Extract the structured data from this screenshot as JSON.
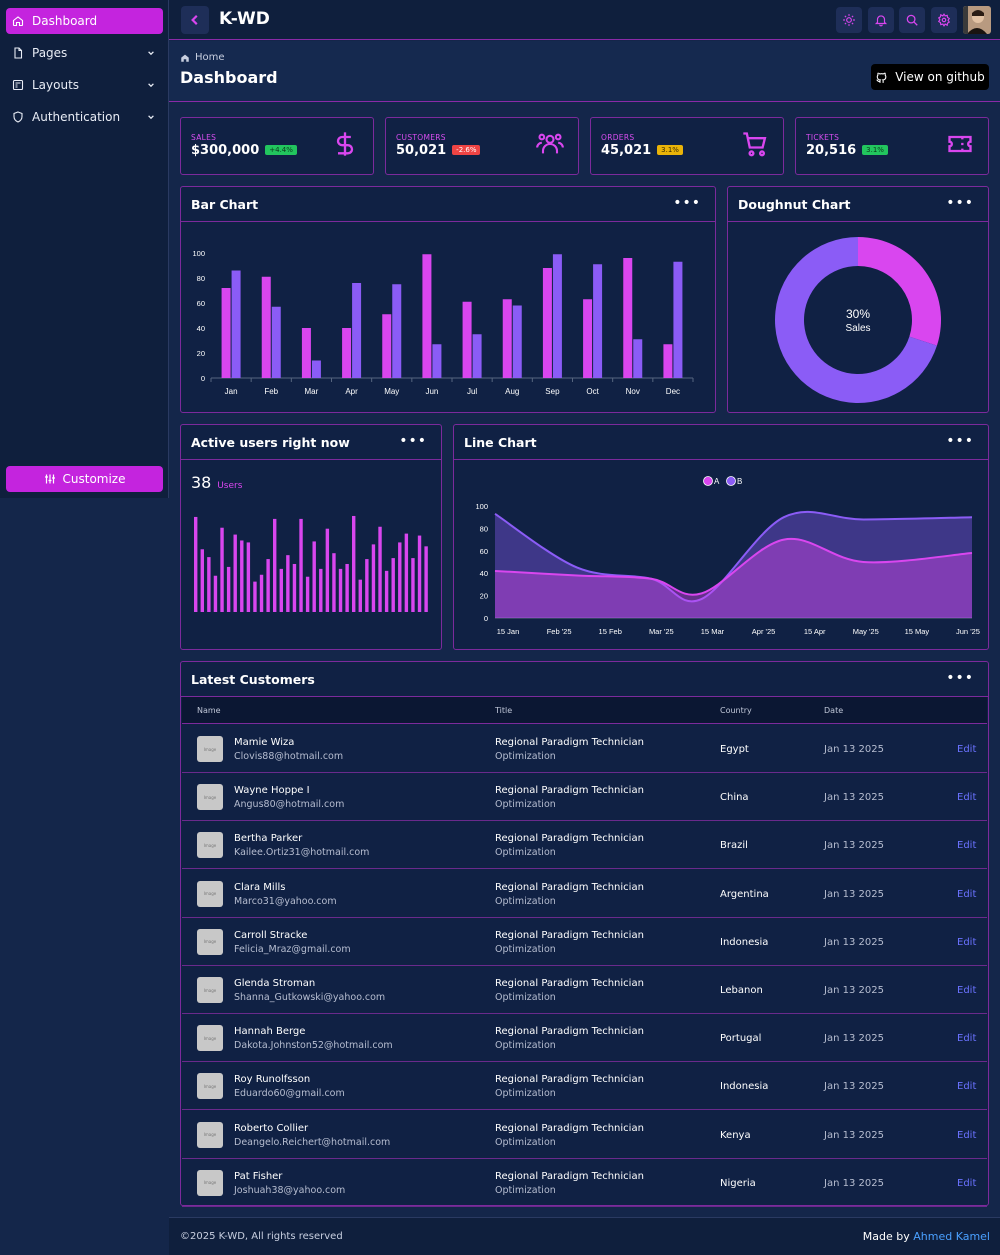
{
  "sidebar": {
    "items": [
      {
        "label": "Dashboard",
        "icon": "home-icon",
        "active": true,
        "has_children": false
      },
      {
        "label": "Pages",
        "icon": "file-icon",
        "active": false,
        "has_children": true
      },
      {
        "label": "Layouts",
        "icon": "layout-icon",
        "active": false,
        "has_children": true
      },
      {
        "label": "Authentication",
        "icon": "shield-icon",
        "active": false,
        "has_children": true
      }
    ],
    "customize_label": "Customize"
  },
  "header": {
    "brand": "K-WD",
    "icons": [
      "sun-icon",
      "bell-icon",
      "search-icon",
      "gear-icon"
    ]
  },
  "page": {
    "breadcrumb": "Home",
    "title": "Dashboard",
    "github_label": "View on github"
  },
  "stats": [
    {
      "label": "SALES",
      "value": "$300,000",
      "badge": "+4.4%",
      "badge_color": "#22c55e",
      "icon": "dollar-icon"
    },
    {
      "label": "CUSTOMERS",
      "value": "50,021",
      "badge": "-2.6%",
      "badge_color": "#ef4444",
      "icon": "users-icon"
    },
    {
      "label": "ORDERS",
      "value": "45,021",
      "badge": "3.1%",
      "badge_color": "#eab308",
      "icon": "cart-icon"
    },
    {
      "label": "TICKETS",
      "value": "20,516",
      "badge": "3.1%",
      "badge_color": "#22c55e",
      "icon": "ticket-icon"
    }
  ],
  "bar_chart": {
    "title": "Bar Chart"
  },
  "doughnut_chart": {
    "title": "Doughnut Chart"
  },
  "active_users": {
    "title": "Active users right now",
    "count": "38",
    "unit": "Users"
  },
  "line_chart": {
    "title": "Line Chart"
  },
  "customers": {
    "title": "Latest Customers",
    "columns": [
      "Name",
      "Title",
      "Country",
      "Date"
    ],
    "thumb_text": "Image",
    "edit_label": "Edit",
    "rows": [
      {
        "name": "Mamie Wiza",
        "email": "Clovis88@hotmail.com",
        "title": "Regional Paradigm Technician",
        "dept": "Optimization",
        "country": "Egypt",
        "date": "Jan 13 2025"
      },
      {
        "name": "Wayne Hoppe I",
        "email": "Angus80@hotmail.com",
        "title": "Regional Paradigm Technician",
        "dept": "Optimization",
        "country": "China",
        "date": "Jan 13 2025"
      },
      {
        "name": "Bertha Parker",
        "email": "Kailee.Ortiz31@hotmail.com",
        "title": "Regional Paradigm Technician",
        "dept": "Optimization",
        "country": "Brazil",
        "date": "Jan 13 2025"
      },
      {
        "name": "Clara Mills",
        "email": "Marco31@yahoo.com",
        "title": "Regional Paradigm Technician",
        "dept": "Optimization",
        "country": "Argentina",
        "date": "Jan 13 2025"
      },
      {
        "name": "Carroll Stracke",
        "email": "Felicia_Mraz@gmail.com",
        "title": "Regional Paradigm Technician",
        "dept": "Optimization",
        "country": "Indonesia",
        "date": "Jan 13 2025"
      },
      {
        "name": "Glenda Stroman",
        "email": "Shanna_Gutkowski@yahoo.com",
        "title": "Regional Paradigm Technician",
        "dept": "Optimization",
        "country": "Lebanon",
        "date": "Jan 13 2025"
      },
      {
        "name": "Hannah Berge",
        "email": "Dakota.Johnston52@hotmail.com",
        "title": "Regional Paradigm Technician",
        "dept": "Optimization",
        "country": "Portugal",
        "date": "Jan 13 2025"
      },
      {
        "name": "Roy Runolfsson",
        "email": "Eduardo60@gmail.com",
        "title": "Regional Paradigm Technician",
        "dept": "Optimization",
        "country": "Indonesia",
        "date": "Jan 13 2025"
      },
      {
        "name": "Roberto Collier",
        "email": "Deangelo.Reichert@hotmail.com",
        "title": "Regional Paradigm Technician",
        "dept": "Optimization",
        "country": "Kenya",
        "date": "Jan 13 2025"
      },
      {
        "name": "Pat Fisher",
        "email": "Joshuah38@yahoo.com",
        "title": "Regional Paradigm Technician",
        "dept": "Optimization",
        "country": "Nigeria",
        "date": "Jan 13 2025"
      }
    ]
  },
  "footer": {
    "copyright": "©2025 K-WD, All rights reserved",
    "made_by": "Made by",
    "author": "Ahmed Kamel"
  },
  "colors": {
    "accent": "#c424de",
    "series_a": "#d946ef",
    "series_b": "#8b5cf6"
  },
  "chart_data": [
    {
      "type": "bar",
      "categories": [
        "Jan",
        "Feb",
        "Mar",
        "Apr",
        "May",
        "Jun",
        "Jul",
        "Aug",
        "Sep",
        "Oct",
        "Nov",
        "Dec"
      ],
      "series": [
        {
          "values": [
            72,
            81,
            40,
            40,
            51,
            99,
            61,
            63,
            88,
            63,
            96,
            27
          ]
        },
        {
          "values": [
            86,
            57,
            14,
            76,
            75,
            27,
            35,
            58,
            99,
            91,
            31,
            93
          ]
        }
      ],
      "yticks": [
        "0",
        "20",
        "40",
        "60",
        "80",
        "100"
      ],
      "ylim": [
        0,
        100
      ]
    },
    {
      "type": "pie",
      "values": [
        30,
        70
      ],
      "center_value": "30%",
      "center_label": "Sales"
    },
    {
      "type": "bar",
      "values": [
        97,
        64,
        56,
        37,
        86,
        46,
        79,
        73,
        71,
        31,
        38,
        54,
        95,
        44,
        58,
        49,
        95,
        36,
        72,
        44,
        85,
        60,
        44,
        49,
        98,
        33,
        54,
        69,
        87,
        42,
        55,
        71,
        80,
        55,
        78,
        67
      ],
      "ylim": [
        0,
        100
      ]
    },
    {
      "type": "area",
      "legend": [
        "A",
        "B"
      ],
      "legend_position": "top",
      "xticks": [
        "15 Jan",
        "Feb '25",
        "15 Feb",
        "Mar '25",
        "15 Mar",
        "Apr '25",
        "15 Apr",
        "May '25",
        "15 May",
        "Jun '25"
      ],
      "x": [
        "2025-01-01",
        "2025-02-01",
        "2025-03-01",
        "2025-03-20",
        "2025-04-20",
        "2025-05-20",
        "2025-06-30"
      ],
      "series": [
        {
          "name": "A",
          "values": [
            42,
            38,
            35,
            22,
            70,
            50,
            58
          ]
        },
        {
          "name": "B",
          "values": [
            93,
            45,
            35,
            17,
            90,
            88,
            90
          ]
        }
      ],
      "yticks": [
        "0",
        "20",
        "40",
        "60",
        "80",
        "100"
      ],
      "ylim": [
        0,
        100
      ]
    }
  ]
}
